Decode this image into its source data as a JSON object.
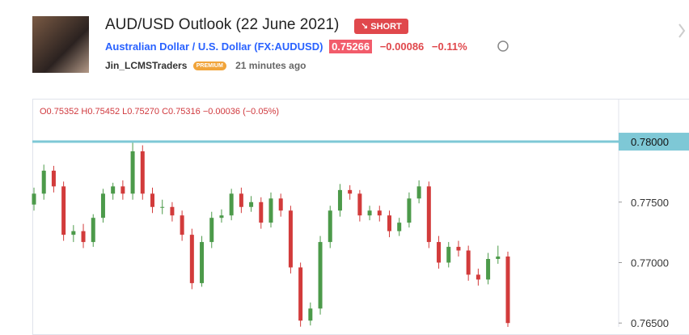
{
  "header": {
    "title": "AUD/USD Outlook (22 June 2021)",
    "badge": "SHORT",
    "symbol_name": "Australian Dollar / U.S. Dollar",
    "symbol_code": "(FX:AUDUSD)",
    "price": "0.75266",
    "change": "−0.00086",
    "change_pct": "−0.11%",
    "author": "Jin_LCMSTraders",
    "author_tag": "PREMIUM",
    "time": "21 minutes ago"
  },
  "ohlc_legend": "O0.75352 H0.75452 L0.75270 C0.75316 −0.00036 (−0.05%)",
  "chart_data": {
    "type": "candlestick",
    "open": [
      0.7748,
      0.7757,
      0.7776,
      0.7763,
      0.7723,
      0.7726,
      0.7717,
      0.7737,
      0.7757,
      0.7763,
      0.7757,
      0.7792,
      0.7757,
      0.7746,
      0.7746,
      0.7739,
      0.7723,
      0.7683,
      0.7717,
      0.7737,
      0.7739,
      0.7757,
      0.7746,
      0.775,
      0.7733,
      0.7753,
      0.7743,
      0.7696,
      0.7652,
      0.7662,
      0.7717,
      0.7743,
      0.776,
      0.7757,
      0.7739,
      0.7743,
      0.7739,
      0.7726,
      0.7733,
      0.7753,
      0.7763,
      0.7717,
      0.77,
      0.7713,
      0.771,
      0.769,
      0.7686,
      0.7703,
      0.7705
    ],
    "high": [
      0.7762,
      0.7781,
      0.778,
      0.7767,
      0.7731,
      0.7732,
      0.774,
      0.7761,
      0.7766,
      0.7768,
      0.78,
      0.7797,
      0.7762,
      0.7752,
      0.775,
      0.7743,
      0.7728,
      0.7722,
      0.7742,
      0.7744,
      0.7761,
      0.7762,
      0.7755,
      0.7754,
      0.7758,
      0.7757,
      0.7747,
      0.77,
      0.7667,
      0.7722,
      0.7747,
      0.7765,
      0.7764,
      0.776,
      0.7747,
      0.7747,
      0.7743,
      0.7737,
      0.7758,
      0.7768,
      0.7767,
      0.7722,
      0.7717,
      0.7718,
      0.7714,
      0.7695,
      0.7708,
      0.7714,
      0.7709
    ],
    "low": [
      0.7743,
      0.7752,
      0.7758,
      0.7718,
      0.7717,
      0.7712,
      0.7713,
      0.7733,
      0.7752,
      0.7752,
      0.7752,
      0.7752,
      0.7741,
      0.774,
      0.7734,
      0.7718,
      0.7678,
      0.768,
      0.7712,
      0.7733,
      0.7735,
      0.7741,
      0.7742,
      0.7728,
      0.7729,
      0.7738,
      0.7691,
      0.7647,
      0.7648,
      0.7657,
      0.7712,
      0.7738,
      0.7752,
      0.7734,
      0.7735,
      0.7734,
      0.7721,
      0.7722,
      0.7729,
      0.7749,
      0.7712,
      0.7695,
      0.7696,
      0.7705,
      0.7685,
      0.7681,
      0.7682,
      0.7699,
      0.7645
    ],
    "close": [
      0.7757,
      0.7776,
      0.7763,
      0.7723,
      0.7726,
      0.7717,
      0.7737,
      0.7757,
      0.7763,
      0.7757,
      0.7792,
      0.7757,
      0.7746,
      0.7746,
      0.7739,
      0.7723,
      0.7683,
      0.7717,
      0.7737,
      0.7739,
      0.7757,
      0.7746,
      0.775,
      0.7733,
      0.7753,
      0.7743,
      0.7696,
      0.7652,
      0.7662,
      0.7717,
      0.7743,
      0.776,
      0.7757,
      0.7739,
      0.7743,
      0.7739,
      0.7726,
      0.7733,
      0.7753,
      0.7763,
      0.7717,
      0.77,
      0.7713,
      0.771,
      0.769,
      0.7686,
      0.7703,
      0.7705,
      0.765
    ],
    "up_color": "#4c9a4a",
    "down_color": "#d23b3b",
    "ylim": [
      0.76468,
      0.78355
    ],
    "yticks": [
      {
        "value": 0.775,
        "label": "0.77500"
      },
      {
        "value": 0.77,
        "label": "0.77000"
      },
      {
        "value": 0.765,
        "label": "0.76500"
      }
    ],
    "hline": {
      "value": 0.78,
      "label": "0.78000",
      "color": "#7ec8d6"
    }
  }
}
